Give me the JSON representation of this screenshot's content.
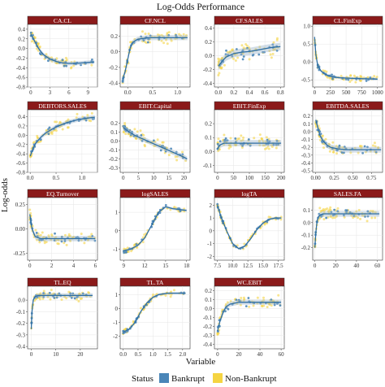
{
  "figure": {
    "title": "Log-Odds Performance",
    "xlabel": "Variable",
    "ylabel": "Log-odds",
    "legend": {
      "title": "Status",
      "placement": "bottom",
      "items": [
        {
          "label": "Bankrupt",
          "color": "#4a86b8"
        },
        {
          "label": "Non-Bankrupt",
          "color": "#f5d442"
        }
      ]
    },
    "colors": {
      "strip": "#8b1a1a",
      "strip_text": "#ffffff",
      "bankrupt": "#4a86b8",
      "non_bankrupt": "#f5d442",
      "panel_border": "#333333"
    }
  },
  "chart_data": [
    {
      "type": "scatter",
      "title": "CA.CL",
      "xlim": [
        -0.5,
        10.5
      ],
      "ylim": [
        -0.8,
        0.5
      ],
      "xticks": [
        0,
        3,
        6,
        9
      ],
      "xtick_labels": [
        "0",
        "3",
        "6",
        "9"
      ],
      "yticks": [
        0.4,
        0.2,
        0.0,
        -0.2,
        -0.4,
        -0.6,
        -0.8
      ],
      "ytick_labels": [
        "0.4",
        "0.2",
        "0.0",
        "-0.2",
        "-0.4",
        "-0.6",
        "-0.8"
      ],
      "trend": {
        "x": [
          0,
          0.5,
          1,
          1.5,
          2,
          3,
          4,
          5,
          6,
          7,
          8,
          9,
          10
        ],
        "y": [
          0.3,
          0.18,
          0.05,
          -0.05,
          -0.13,
          -0.22,
          -0.27,
          -0.3,
          -0.31,
          -0.31,
          -0.3,
          -0.29,
          -0.28
        ]
      },
      "spread": 0.09
    },
    {
      "type": "scatter",
      "title": "CF.NCL",
      "xlim": [
        -0.15,
        1.25
      ],
      "ylim": [
        -0.45,
        0.35
      ],
      "xticks": [
        0.0,
        0.5,
        1.0
      ],
      "xtick_labels": [
        "0.0",
        "0.5",
        "1.0"
      ],
      "yticks": [
        0.2,
        0.0,
        -0.2,
        -0.4
      ],
      "ytick_labels": [
        "0.2",
        "0.0",
        "-0.2",
        "-0.4"
      ],
      "trend": {
        "x": [
          -0.1,
          -0.05,
          0,
          0.05,
          0.1,
          0.2,
          0.4,
          0.6,
          0.8,
          1.0,
          1.2
        ],
        "y": [
          -0.35,
          -0.25,
          -0.1,
          0.05,
          0.12,
          0.16,
          0.18,
          0.18,
          0.18,
          0.18,
          0.18
        ]
      },
      "spread": 0.07
    },
    {
      "type": "scatter",
      "title": "CF.SALES",
      "xlim": [
        -0.05,
        0.85
      ],
      "ylim": [
        -0.45,
        0.45
      ],
      "xticks": [
        0.0,
        0.2,
        0.4,
        0.6,
        0.8
      ],
      "xtick_labels": [
        "0.0",
        "0.2",
        "0.4",
        "0.6",
        "0.8"
      ],
      "yticks": [
        0.4,
        0.2,
        0.0,
        -0.2,
        -0.4
      ],
      "ytick_labels": [
        "0.4",
        "0.2",
        "0.0",
        "-0.2",
        "-0.4"
      ],
      "trend": {
        "x": [
          0,
          0.05,
          0.1,
          0.2,
          0.3,
          0.4,
          0.5,
          0.6,
          0.7,
          0.8
        ],
        "y": [
          -0.15,
          -0.08,
          -0.02,
          0.03,
          0.05,
          0.06,
          0.08,
          0.1,
          0.12,
          0.13
        ]
      },
      "spread": 0.12
    },
    {
      "type": "scatter",
      "title": "CL.FinExp",
      "xlim": [
        -30,
        1080
      ],
      "ylim": [
        -0.7,
        1.05
      ],
      "xticks": [
        0,
        250,
        500,
        750,
        1000
      ],
      "xtick_labels": [
        "0",
        "250",
        "500",
        "750",
        "1000"
      ],
      "yticks": [
        1.0,
        0.5,
        0.0,
        -0.5
      ],
      "ytick_labels": [
        "1.0",
        "0.5",
        "0.0",
        "-0.5"
      ],
      "trend": {
        "x": [
          0,
          20,
          50,
          100,
          150,
          200,
          300,
          400,
          500,
          600,
          800,
          1000
        ],
        "y": [
          0.7,
          0.2,
          -0.1,
          -0.25,
          -0.32,
          -0.37,
          -0.42,
          -0.44,
          -0.45,
          -0.46,
          -0.47,
          -0.48
        ]
      },
      "spread": 0.08
    },
    {
      "type": "scatter",
      "title": "DEBTORS.SALES",
      "xlim": [
        -0.05,
        1.3
      ],
      "ylim": [
        -0.8,
        0.55
      ],
      "xticks": [
        0.0,
        0.5,
        1.0
      ],
      "xtick_labels": [
        "0.0",
        "0.5",
        "1.0"
      ],
      "yticks": [
        0.4,
        0.2,
        0.0,
        -0.2,
        -0.4,
        -0.6,
        -0.8
      ],
      "ytick_labels": [
        "0.4",
        "0.2",
        "0.0",
        "-0.2",
        "-0.4",
        "-0.6",
        "-0.8"
      ],
      "trend": {
        "x": [
          0,
          0.05,
          0.1,
          0.2,
          0.3,
          0.5,
          0.7,
          0.9,
          1.1,
          1.25
        ],
        "y": [
          -0.45,
          -0.3,
          -0.18,
          -0.05,
          0.05,
          0.18,
          0.27,
          0.33,
          0.37,
          0.39
        ]
      },
      "spread": 0.1
    },
    {
      "type": "scatter",
      "title": "EBIT.Capital",
      "xlim": [
        -1,
        22
      ],
      "ylim": [
        -0.35,
        0.35
      ],
      "xticks": [
        0,
        5,
        10,
        15,
        20
      ],
      "xtick_labels": [
        "0",
        "5",
        "10",
        "15",
        "20"
      ],
      "yticks": [
        0.2,
        0.1,
        0.0,
        -0.1,
        -0.2,
        -0.3
      ],
      "ytick_labels": [
        "0.2",
        "0.1",
        "0.0",
        "-0.1",
        "-0.2",
        "-0.3"
      ],
      "trend": {
        "x": [
          0,
          2,
          4,
          6,
          8,
          10,
          12,
          14,
          16,
          18,
          20,
          21
        ],
        "y": [
          0.15,
          0.1,
          0.06,
          0.03,
          0.0,
          -0.03,
          -0.06,
          -0.09,
          -0.12,
          -0.15,
          -0.18,
          -0.2
        ]
      },
      "spread": 0.06
    },
    {
      "type": "scatter",
      "title": "EBIT.FinExp",
      "xlim": [
        -10,
        210
      ],
      "ylim": [
        -0.15,
        0.3
      ],
      "xticks": [
        0,
        50,
        100,
        150,
        200
      ],
      "xtick_labels": [
        "0",
        "50",
        "100",
        "150",
        "200"
      ],
      "yticks": [
        0.2,
        0.1,
        0.0,
        -0.1
      ],
      "ytick_labels": [
        "0.2",
        "0.1",
        "0.0",
        "-0.1"
      ],
      "trend": {
        "x": [
          0,
          5,
          10,
          20,
          40,
          60,
          80,
          100,
          150,
          200
        ],
        "y": [
          0.02,
          0.04,
          0.05,
          0.06,
          0.06,
          0.06,
          0.06,
          0.06,
          0.06,
          0.06
        ]
      },
      "spread": 0.05
    },
    {
      "type": "scatter",
      "title": "EBITDA.SALES",
      "xlim": [
        -0.04,
        0.9
      ],
      "ylim": [
        -0.52,
        0.28
      ],
      "xticks": [
        0.0,
        0.25,
        0.5,
        0.75
      ],
      "xtick_labels": [
        "0.00",
        "0.25",
        "0.50",
        "0.75"
      ],
      "yticks": [
        0.2,
        0.1,
        0.0,
        -0.1,
        -0.2,
        -0.3,
        -0.4,
        -0.5
      ],
      "ytick_labels": [
        "0.2",
        "0.1",
        "0.0",
        "-0.1",
        "-0.2",
        "-0.3",
        "-0.4",
        "-0.5"
      ],
      "trend": {
        "x": [
          0,
          0.03,
          0.06,
          0.1,
          0.15,
          0.2,
          0.3,
          0.4,
          0.5,
          0.6,
          0.7,
          0.8,
          0.88
        ],
        "y": [
          0.15,
          0.05,
          -0.05,
          -0.12,
          -0.17,
          -0.2,
          -0.22,
          -0.23,
          -0.23,
          -0.23,
          -0.23,
          -0.23,
          -0.23
        ]
      },
      "spread": 0.08
    },
    {
      "type": "scatter",
      "title": "EQ.Turnover",
      "xlim": [
        -0.2,
        6.2
      ],
      "ylim": [
        -0.32,
        0.32
      ],
      "xticks": [
        0,
        2,
        4,
        6
      ],
      "xtick_labels": [
        "0",
        "2",
        "4",
        "6"
      ],
      "yticks": [
        0.25,
        0.0,
        -0.25
      ],
      "ytick_labels": [
        "0.25",
        "0.00",
        "-0.25"
      ],
      "trend": {
        "x": [
          0,
          0.2,
          0.5,
          1,
          1.5,
          2,
          3,
          4,
          5,
          6
        ],
        "y": [
          0.15,
          0.0,
          -0.08,
          -0.1,
          -0.1,
          -0.1,
          -0.1,
          -0.1,
          -0.1,
          -0.1
        ]
      },
      "spread": 0.06
    },
    {
      "type": "scatter",
      "title": "logSALES",
      "xlim": [
        8.5,
        18.5
      ],
      "ylim": [
        -1.6,
        1.8
      ],
      "xticks": [
        9,
        12,
        15,
        18
      ],
      "xtick_labels": [
        "9",
        "12",
        "15",
        "18"
      ],
      "yticks": [
        1,
        0,
        -1
      ],
      "ytick_labels": [
        "1",
        "0",
        "-1"
      ],
      "trend": {
        "x": [
          9,
          10,
          11,
          12,
          13,
          14,
          15,
          16,
          17,
          18
        ],
        "y": [
          -1.1,
          -1.0,
          -0.8,
          -0.4,
          0.3,
          1.0,
          1.3,
          1.2,
          1.15,
          1.1
        ]
      },
      "spread": 0.15
    },
    {
      "type": "scatter",
      "title": "logTA",
      "xlim": [
        7,
        18.5
      ],
      "ylim": [
        -2.3,
        2.6
      ],
      "xticks": [
        7.5,
        10.0,
        12.5,
        15.0,
        17.5
      ],
      "xtick_labels": [
        "7.5",
        "10.0",
        "12.5",
        "15.0",
        "17.5"
      ],
      "yticks": [
        2,
        1,
        0,
        -1,
        -2
      ],
      "ytick_labels": [
        "2",
        "1",
        "0",
        "-1",
        "-2"
      ],
      "trend": {
        "x": [
          7.5,
          8,
          9,
          10,
          11,
          12,
          13,
          14,
          15,
          16,
          17,
          18
        ],
        "y": [
          2.0,
          1.2,
          0.0,
          -1.0,
          -1.4,
          -1.2,
          -0.6,
          0.1,
          0.6,
          0.9,
          1.0,
          1.0
        ]
      },
      "spread": 0.2
    },
    {
      "type": "scatter",
      "title": "SALES.FA",
      "xlim": [
        -2,
        65
      ],
      "ylim": [
        -0.3,
        0.2
      ],
      "xticks": [
        0,
        20,
        40,
        60
      ],
      "xtick_labels": [
        "0",
        "20",
        "40",
        "60"
      ],
      "yticks": [
        0.1,
        0.0,
        -0.1,
        -0.2
      ],
      "ytick_labels": [
        "0.1",
        "0.0",
        "-0.1",
        "-0.2"
      ],
      "trend": {
        "x": [
          0,
          1,
          2,
          3,
          5,
          8,
          15,
          25,
          35,
          45,
          55,
          62
        ],
        "y": [
          -0.2,
          -0.08,
          0.0,
          0.04,
          0.06,
          0.07,
          0.07,
          0.07,
          0.07,
          0.07,
          0.07,
          0.07
        ]
      },
      "spread": 0.05
    },
    {
      "type": "scatter",
      "title": "TL.EQ",
      "xlim": [
        -1.5,
        27
      ],
      "ylim": [
        -0.42,
        0.12
      ],
      "xticks": [
        0,
        10,
        20
      ],
      "xtick_labels": [
        "0",
        "10",
        "20"
      ],
      "yticks": [
        0.0,
        -0.1,
        -0.2,
        -0.3,
        -0.4
      ],
      "ytick_labels": [
        "0.0",
        "-0.1",
        "-0.2",
        "-0.3",
        "-0.4"
      ],
      "trend": {
        "x": [
          0,
          0.3,
          0.8,
          1.5,
          3,
          5,
          10,
          15,
          20,
          25
        ],
        "y": [
          -0.25,
          -0.1,
          0.0,
          0.03,
          0.04,
          0.04,
          0.04,
          0.04,
          0.04,
          0.04
        ]
      },
      "spread": 0.04
    },
    {
      "type": "scatter",
      "title": "TL.TA",
      "xlim": [
        -0.1,
        2.25
      ],
      "ylim": [
        -2.9,
        1.6
      ],
      "xticks": [
        0.0,
        0.5,
        1.0,
        1.5,
        2.0
      ],
      "xtick_labels": [
        "0.0",
        "0.5",
        "1.0",
        "1.5",
        "2.0"
      ],
      "yticks": [
        1,
        0,
        -1,
        -2
      ],
      "ytick_labels": [
        "1",
        "0",
        "-1",
        "-2"
      ],
      "trend": {
        "x": [
          0,
          0.2,
          0.4,
          0.6,
          0.8,
          1.0,
          1.2,
          1.5,
          1.8,
          2.1
        ],
        "y": [
          -1.7,
          -1.5,
          -1.0,
          -0.2,
          0.4,
          0.8,
          1.0,
          1.1,
          1.1,
          1.1
        ]
      },
      "spread": 0.18
    },
    {
      "type": "scatter",
      "title": "WC.EBIT",
      "xlim": [
        -3,
        63
      ],
      "ylim": [
        -0.45,
        0.25
      ],
      "xticks": [
        0,
        20,
        40,
        60
      ],
      "xtick_labels": [
        "0",
        "20",
        "40",
        "60"
      ],
      "yticks": [
        0.2,
        0.1,
        0.0,
        -0.1,
        -0.2,
        -0.3,
        -0.4
      ],
      "ytick_labels": [
        "0.2",
        "0.1",
        "0.0",
        "-0.1",
        "-0.2",
        "-0.3",
        "-0.4"
      ],
      "trend": {
        "x": [
          0,
          2,
          5,
          8,
          12,
          16,
          20,
          30,
          40,
          50,
          60
        ],
        "y": [
          -0.25,
          -0.15,
          -0.05,
          0.02,
          0.05,
          0.06,
          0.07,
          0.07,
          0.07,
          0.07,
          0.07
        ]
      },
      "spread": 0.06
    }
  ]
}
